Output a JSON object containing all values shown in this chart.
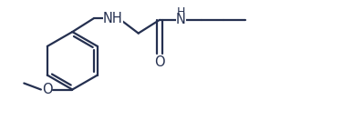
{
  "bg_color": "#ffffff",
  "line_color": "#253050",
  "line_width": 1.6,
  "font_size": 10.5,
  "font_color": "#253050",
  "figsize": [
    3.87,
    1.32
  ],
  "dpi": 100,
  "xlim": [
    0,
    10.0
  ],
  "ylim": [
    0,
    3.4
  ]
}
